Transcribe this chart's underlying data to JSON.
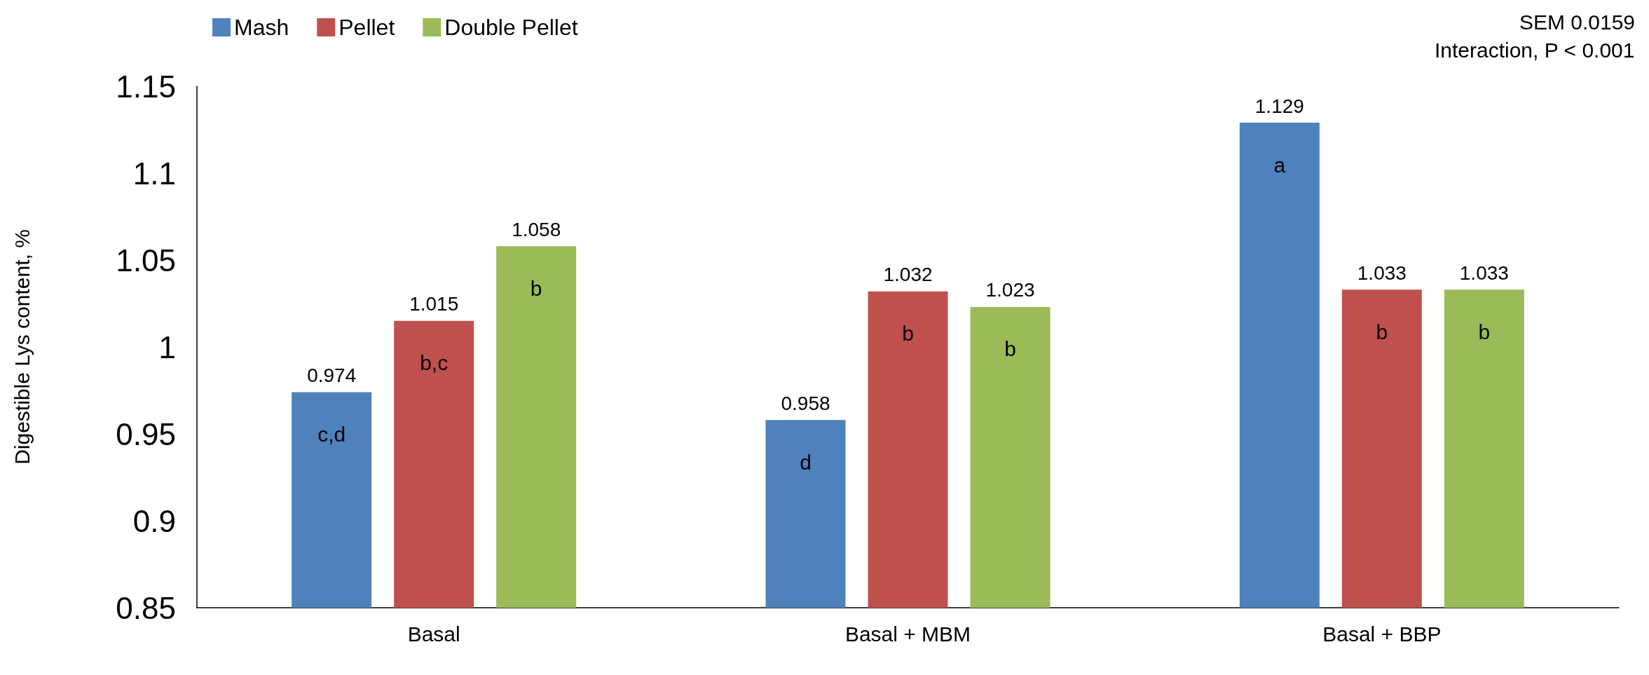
{
  "chart_data": {
    "type": "bar",
    "ylabel": "Digestible Lys content, %",
    "categories": [
      "Basal",
      "Basal + MBM",
      "Basal + BBP"
    ],
    "series": [
      {
        "name": "Mash",
        "color": "#4f81bd",
        "values": [
          0.974,
          0.958,
          1.129
        ]
      },
      {
        "name": "Pellet",
        "color": "#c0504d",
        "values": [
          1.015,
          1.032,
          1.033
        ]
      },
      {
        "name": "Double Pellet",
        "color": "#9bbb59",
        "values": [
          1.058,
          1.023,
          1.033
        ]
      }
    ],
    "ylim": [
      0.85,
      1.15
    ],
    "yticks": [
      0.85,
      0.9,
      0.95,
      1,
      1.05,
      1.1,
      1.15
    ],
    "grid": false,
    "legend": "top left",
    "data_labels": true,
    "annotations": [
      "SEM 0.0159",
      "Interaction, P < 0.001",
      "c,d",
      "b,c",
      "b",
      "d",
      "b",
      "b",
      "a",
      "b",
      "b"
    ]
  }
}
